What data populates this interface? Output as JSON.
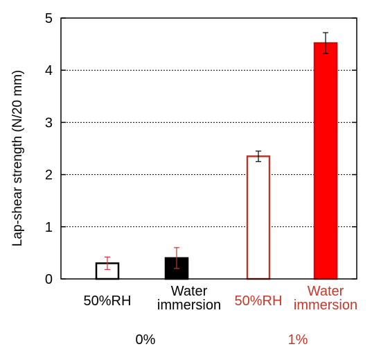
{
  "chart_data": {
    "type": "bar",
    "ylabel": "Lap-shear strength (N/20 mm)",
    "ylim": [
      0,
      5
    ],
    "yticks": [
      "0",
      "1",
      "2",
      "3",
      "4",
      "5"
    ],
    "grid": "horizontal dotted lines at 1–4",
    "bars": [
      {
        "label": [
          "50%RH"
        ],
        "group": "0%",
        "value": 0.3,
        "error": 0.12,
        "fill": "#ffffff",
        "stroke": "#000000",
        "err_color": "#c0392b",
        "label_color": "#000000"
      },
      {
        "label": [
          "Water",
          "immersion"
        ],
        "group": "0%",
        "value": 0.4,
        "error": 0.2,
        "fill": "#000000",
        "stroke": "#000000",
        "err_color": "#c0392b",
        "label_color": "#000000"
      },
      {
        "label": [
          "50%RH"
        ],
        "group": "1%",
        "value": 2.35,
        "error": 0.1,
        "fill": "#ffffff",
        "stroke": "#b03a2e",
        "err_color": "#000000",
        "label_color": "#c0392b"
      },
      {
        "label": [
          "Water",
          "immersion"
        ],
        "group": "1%",
        "value": 4.52,
        "error": 0.2,
        "fill": "#ff0000",
        "stroke": "#e00000",
        "err_color": "#000000",
        "label_color": "#c0392b"
      }
    ],
    "groups": [
      {
        "name": "0%",
        "color": "#000000"
      },
      {
        "name": "1%",
        "color": "#c0392b"
      }
    ]
  }
}
